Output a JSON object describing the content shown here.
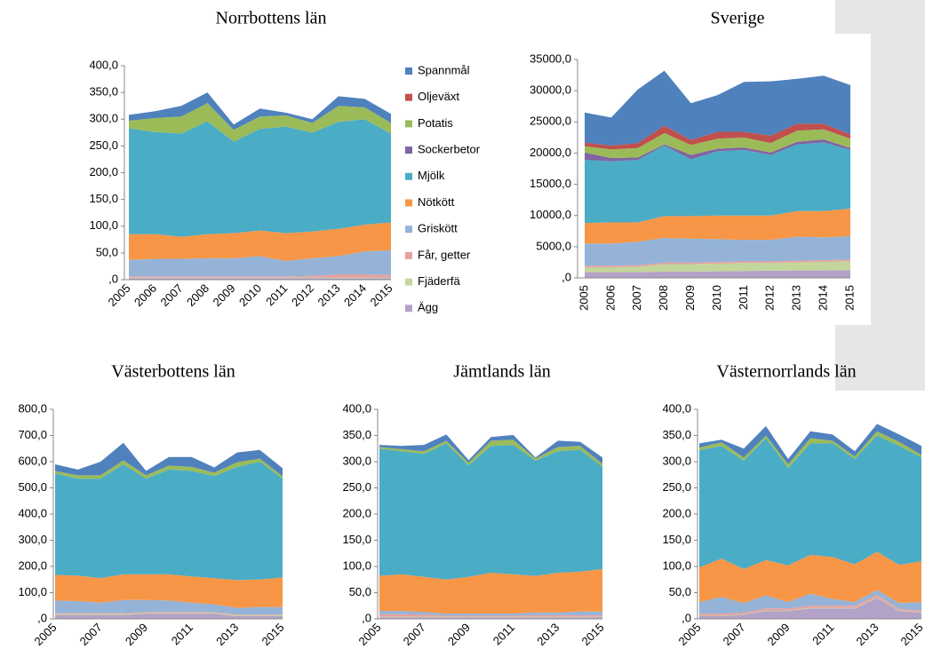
{
  "chart_data": [
    {
      "type": "area",
      "title": "Norrbottens län",
      "categories": [
        "2005",
        "2006",
        "2007",
        "2008",
        "2009",
        "2010",
        "2011",
        "2012",
        "2013",
        "2014",
        "2015"
      ],
      "ylim": [
        0,
        400
      ],
      "yticks": [
        {
          "value": 0,
          "label": ",0"
        },
        {
          "value": 50,
          "label": "50,0"
        },
        {
          "value": 100,
          "label": "100,0"
        },
        {
          "value": 150,
          "label": "150,0"
        },
        {
          "value": 200,
          "label": "200,0"
        },
        {
          "value": 250,
          "label": "250,0"
        },
        {
          "value": 300,
          "label": "300,0"
        },
        {
          "value": 350,
          "label": "350,0"
        },
        {
          "value": 400,
          "label": "400,0"
        }
      ],
      "legend": "right",
      "series": [
        {
          "name": "Ägg",
          "color": "#b3a2c7",
          "values": [
            3,
            3,
            3,
            3,
            3,
            3,
            3,
            3,
            3,
            3,
            3
          ]
        },
        {
          "name": "Fjäderfä",
          "color": "#c3d69b",
          "values": [
            1,
            1,
            1,
            1,
            1,
            1,
            1,
            1,
            1,
            1,
            1
          ]
        },
        {
          "name": "Får, getter",
          "color": "#e6a0a0",
          "values": [
            2,
            2,
            2,
            2,
            2,
            2,
            2,
            3,
            6,
            6,
            5
          ]
        },
        {
          "name": "Griskött",
          "color": "#95b3d7",
          "values": [
            31,
            33,
            33,
            34,
            34,
            38,
            29,
            33,
            34,
            43,
            46
          ]
        },
        {
          "name": "Nötkött",
          "color": "#f79646",
          "values": [
            48,
            46,
            41,
            45,
            47,
            48,
            52,
            50,
            51,
            50,
            52
          ]
        },
        {
          "name": "Mjölk",
          "color": "#4bacc6",
          "values": [
            198,
            191,
            193,
            211,
            171,
            190,
            199,
            185,
            200,
            197,
            166
          ]
        },
        {
          "name": "Sockerbetor",
          "color": "#8064a2",
          "values": [
            0,
            0,
            0,
            0,
            0,
            0,
            0,
            0,
            0,
            0,
            0
          ]
        },
        {
          "name": "Potatis",
          "color": "#9bbb59",
          "values": [
            14,
            26,
            32,
            34,
            22,
            23,
            21,
            18,
            30,
            22,
            20
          ]
        },
        {
          "name": "Oljeväxt",
          "color": "#c0504d",
          "values": [
            0,
            0,
            0,
            0,
            0,
            0,
            0,
            0,
            0,
            0,
            0
          ]
        },
        {
          "name": "Spannmål",
          "color": "#4f81bd",
          "values": [
            11,
            13,
            20,
            20,
            10,
            15,
            5,
            7,
            18,
            16,
            17
          ]
        }
      ]
    },
    {
      "type": "area",
      "title": "Sverige",
      "categories": [
        "2005",
        "2006",
        "2007",
        "2008",
        "2009",
        "2010",
        "2011",
        "2012",
        "2013",
        "2014",
        "2015"
      ],
      "ylim": [
        0,
        35000
      ],
      "yticks": [
        {
          "value": 0,
          "label": ",0"
        },
        {
          "value": 5000,
          "label": "5000,0"
        },
        {
          "value": 10000,
          "label": "10000,0"
        },
        {
          "value": 15000,
          "label": "15000,0"
        },
        {
          "value": 20000,
          "label": "20000,0"
        },
        {
          "value": 25000,
          "label": "25000,0"
        },
        {
          "value": 30000,
          "label": "30000,0"
        },
        {
          "value": 35000,
          "label": "35000,0"
        }
      ],
      "series": [
        {
          "color": "#b3a2c7",
          "values": [
            900,
            900,
            950,
            1000,
            1000,
            1050,
            1100,
            1150,
            1200,
            1200,
            1250
          ]
        },
        {
          "color": "#c3d69b",
          "values": [
            800,
            800,
            850,
            1200,
            1200,
            1250,
            1300,
            1250,
            1300,
            1400,
            1450
          ]
        },
        {
          "color": "#e6a0a0",
          "values": [
            250,
            250,
            250,
            250,
            250,
            250,
            250,
            250,
            250,
            250,
            250
          ]
        },
        {
          "color": "#95b3d7",
          "values": [
            3550,
            3550,
            3750,
            3950,
            3850,
            3650,
            3450,
            3450,
            3850,
            3650,
            3750
          ]
        },
        {
          "color": "#f79646",
          "values": [
            3300,
            3400,
            3100,
            3500,
            3600,
            3800,
            3900,
            3900,
            4100,
            4200,
            4400
          ]
        },
        {
          "color": "#4bacc6",
          "values": [
            10100,
            9800,
            10000,
            11300,
            9100,
            10300,
            10500,
            9700,
            10700,
            11000,
            9400
          ]
        },
        {
          "color": "#8064a2",
          "values": [
            1200,
            500,
            400,
            200,
            700,
            400,
            400,
            400,
            400,
            500,
            300
          ]
        },
        {
          "color": "#9bbb59",
          "values": [
            1000,
            1400,
            1500,
            1800,
            1600,
            1600,
            1600,
            1500,
            1800,
            1600,
            1500
          ]
        },
        {
          "color": "#c0504d",
          "values": [
            600,
            600,
            800,
            1200,
            800,
            1100,
            900,
            1200,
            1100,
            900,
            700
          ]
        },
        {
          "color": "#4f81bd",
          "values": [
            4800,
            4500,
            8600,
            8800,
            5900,
            5900,
            8000,
            8700,
            7200,
            7700,
            7900
          ]
        }
      ]
    },
    {
      "type": "area",
      "title": "Västerbottens län",
      "categories": [
        "2005",
        null,
        "2007",
        null,
        "2009",
        null,
        "2011",
        null,
        "2013",
        null,
        "2015"
      ],
      "ylim": [
        0,
        800
      ],
      "yticks": [
        {
          "value": 0,
          "label": ",0"
        },
        {
          "value": 100,
          "label": "100,0"
        },
        {
          "value": 200,
          "label": "200,0"
        },
        {
          "value": 300,
          "label": "300,0"
        },
        {
          "value": 400,
          "label": "400,0"
        },
        {
          "value": 500,
          "label": "500,0"
        },
        {
          "value": 600,
          "label": "600,0"
        },
        {
          "value": 700,
          "label": "700,0"
        },
        {
          "value": 800,
          "label": "800,0"
        }
      ],
      "series": [
        {
          "color": "#b3a2c7",
          "values": [
            15,
            15,
            15,
            15,
            20,
            20,
            20,
            20,
            10,
            10,
            10
          ]
        },
        {
          "color": "#c3d69b",
          "values": [
            3,
            3,
            3,
            3,
            3,
            3,
            3,
            3,
            3,
            3,
            3
          ]
        },
        {
          "color": "#e6a0a0",
          "values": [
            3,
            3,
            3,
            3,
            3,
            3,
            3,
            3,
            3,
            3,
            3
          ]
        },
        {
          "color": "#95b3d7",
          "values": [
            49,
            47,
            41,
            51,
            46,
            44,
            36,
            29,
            26,
            29,
            29
          ]
        },
        {
          "color": "#f79646",
          "values": [
            98,
            97,
            93,
            98,
            98,
            100,
            100,
            100,
            106,
            105,
            113
          ]
        },
        {
          "color": "#4bacc6",
          "values": [
            387,
            370,
            380,
            420,
            365,
            400,
            403,
            390,
            432,
            450,
            377
          ]
        },
        {
          "color": "#8064a2",
          "values": [
            0,
            0,
            0,
            0,
            0,
            0,
            0,
            0,
            0,
            0,
            0
          ]
        },
        {
          "color": "#9bbb59",
          "values": [
            10,
            13,
            13,
            15,
            13,
            15,
            15,
            13,
            18,
            12,
            10
          ]
        },
        {
          "color": "#c0504d",
          "values": [
            0,
            0,
            0,
            0,
            0,
            0,
            0,
            0,
            0,
            0,
            0
          ]
        },
        {
          "color": "#4f81bd",
          "values": [
            25,
            22,
            52,
            67,
            17,
            33,
            38,
            20,
            37,
            33,
            30
          ]
        }
      ]
    },
    {
      "type": "area",
      "title": "Jämtlands län",
      "categories": [
        "2005",
        null,
        "2007",
        null,
        "2009",
        null,
        "2011",
        null,
        "2013",
        null,
        "2015"
      ],
      "ylim": [
        0,
        400
      ],
      "yticks": [
        {
          "value": 0,
          "label": ",0"
        },
        {
          "value": 50,
          "label": "50,0"
        },
        {
          "value": 100,
          "label": "100,0"
        },
        {
          "value": 150,
          "label": "150,0"
        },
        {
          "value": 200,
          "label": "200,0"
        },
        {
          "value": 250,
          "label": "250,0"
        },
        {
          "value": 300,
          "label": "300,0"
        },
        {
          "value": 350,
          "label": "350,0"
        },
        {
          "value": 400,
          "label": "400,0"
        }
      ],
      "series": [
        {
          "color": "#b3a2c7",
          "values": [
            3,
            3,
            3,
            3,
            3,
            3,
            3,
            3,
            3,
            3,
            3
          ]
        },
        {
          "color": "#c3d69b",
          "values": [
            1,
            1,
            1,
            1,
            1,
            1,
            1,
            1,
            1,
            1,
            1
          ]
        },
        {
          "color": "#e6a0a0",
          "values": [
            5,
            5,
            4,
            2,
            2,
            2,
            2,
            3,
            3,
            3,
            3
          ]
        },
        {
          "color": "#95b3d7",
          "values": [
            6,
            6,
            5,
            4,
            4,
            4,
            4,
            5,
            5,
            7,
            7
          ]
        },
        {
          "color": "#f79646",
          "values": [
            67,
            70,
            67,
            65,
            70,
            78,
            75,
            70,
            76,
            76,
            81
          ]
        },
        {
          "color": "#4bacc6",
          "values": [
            243,
            235,
            235,
            260,
            213,
            242,
            247,
            220,
            232,
            233,
            195
          ]
        },
        {
          "color": "#8064a2",
          "values": [
            0,
            0,
            0,
            0,
            0,
            0,
            0,
            0,
            0,
            0,
            0
          ]
        },
        {
          "color": "#9bbb59",
          "values": [
            3,
            4,
            5,
            5,
            5,
            10,
            10,
            4,
            8,
            7,
            6
          ]
        },
        {
          "color": "#c0504d",
          "values": [
            0,
            0,
            0,
            0,
            0,
            0,
            0,
            0,
            0,
            0,
            0
          ]
        },
        {
          "color": "#4f81bd",
          "values": [
            4,
            6,
            12,
            12,
            5,
            7,
            9,
            2,
            12,
            8,
            12
          ]
        }
      ]
    },
    {
      "type": "area",
      "title": "Västernorrlands län",
      "categories": [
        "2005",
        null,
        "2007",
        null,
        "2009",
        null,
        "2011",
        null,
        "2013",
        null,
        "2015"
      ],
      "ylim": [
        0,
        400
      ],
      "yticks": [
        {
          "value": 0,
          "label": ",0"
        },
        {
          "value": 50,
          "label": "50,0"
        },
        {
          "value": 100,
          "label": "100,0"
        },
        {
          "value": 150,
          "label": "150,0"
        },
        {
          "value": 200,
          "label": "200,0"
        },
        {
          "value": 250,
          "label": "250,0"
        },
        {
          "value": 300,
          "label": "300,0"
        },
        {
          "value": 350,
          "label": "350,0"
        },
        {
          "value": 400,
          "label": "400,0"
        }
      ],
      "series": [
        {
          "color": "#b3a2c7",
          "values": [
            5,
            5,
            8,
            15,
            15,
            20,
            20,
            20,
            40,
            15,
            12
          ]
        },
        {
          "color": "#c3d69b",
          "values": [
            1,
            1,
            1,
            1,
            1,
            1,
            1,
            1,
            1,
            1,
            1
          ]
        },
        {
          "color": "#e6a0a0",
          "values": [
            4,
            4,
            3,
            4,
            4,
            4,
            4,
            4,
            5,
            3,
            3
          ]
        },
        {
          "color": "#95b3d7",
          "values": [
            22,
            32,
            18,
            25,
            12,
            23,
            13,
            7,
            9,
            11,
            16
          ]
        },
        {
          "color": "#f79646",
          "values": [
            66,
            73,
            65,
            67,
            70,
            74,
            80,
            72,
            73,
            73,
            78
          ]
        },
        {
          "color": "#4bacc6",
          "values": [
            224,
            215,
            207,
            233,
            186,
            213,
            217,
            201,
            222,
            227,
            198
          ]
        },
        {
          "color": "#8064a2",
          "values": [
            0,
            0,
            0,
            0,
            0,
            0,
            0,
            0,
            0,
            0,
            0
          ]
        },
        {
          "color": "#9bbb59",
          "values": [
            5,
            7,
            6,
            5,
            7,
            10,
            5,
            5,
            8,
            8,
            5
          ]
        },
        {
          "color": "#c0504d",
          "values": [
            0,
            0,
            0,
            0,
            0,
            0,
            0,
            0,
            0,
            0,
            0
          ]
        },
        {
          "color": "#4f81bd",
          "values": [
            8,
            5,
            17,
            18,
            10,
            13,
            12,
            10,
            14,
            14,
            17
          ]
        }
      ]
    }
  ]
}
